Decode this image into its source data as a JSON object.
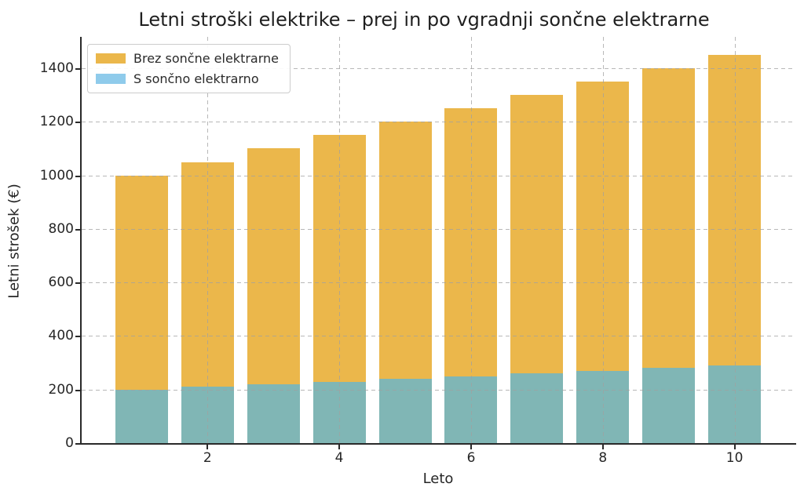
{
  "chart_data": {
    "type": "bar",
    "title": "Letni stroški elektrike – prej in po vgradnji sončne elektrarne",
    "xlabel": "Leto",
    "ylabel": "Letni strošek (€)",
    "x": [
      1,
      2,
      3,
      4,
      5,
      6,
      7,
      8,
      9,
      10
    ],
    "series": [
      {
        "name": "Brez sončne elektrarne",
        "legend_color": "#EBB74B",
        "bar_color": "#EBB74B",
        "values": [
          1000,
          1050,
          1100,
          1150,
          1200,
          1250,
          1300,
          1350,
          1400,
          1450
        ]
      },
      {
        "name": "S sončno elektrarno",
        "legend_color": "#8FCBEB",
        "bar_color": "#80B6B5",
        "values": [
          200,
          210,
          220,
          230,
          240,
          250,
          260,
          270,
          280,
          290
        ]
      }
    ],
    "xticks": [
      2,
      4,
      6,
      8,
      10
    ],
    "yticks": [
      0,
      200,
      400,
      600,
      800,
      1000,
      1200,
      1400
    ],
    "xlim": [
      0.09,
      10.91
    ],
    "ylim": [
      0,
      1517
    ],
    "bar_width": 0.8,
    "grid": true,
    "grid_style": "dashed",
    "legend_position": "upper left",
    "background": "#ffffff"
  }
}
